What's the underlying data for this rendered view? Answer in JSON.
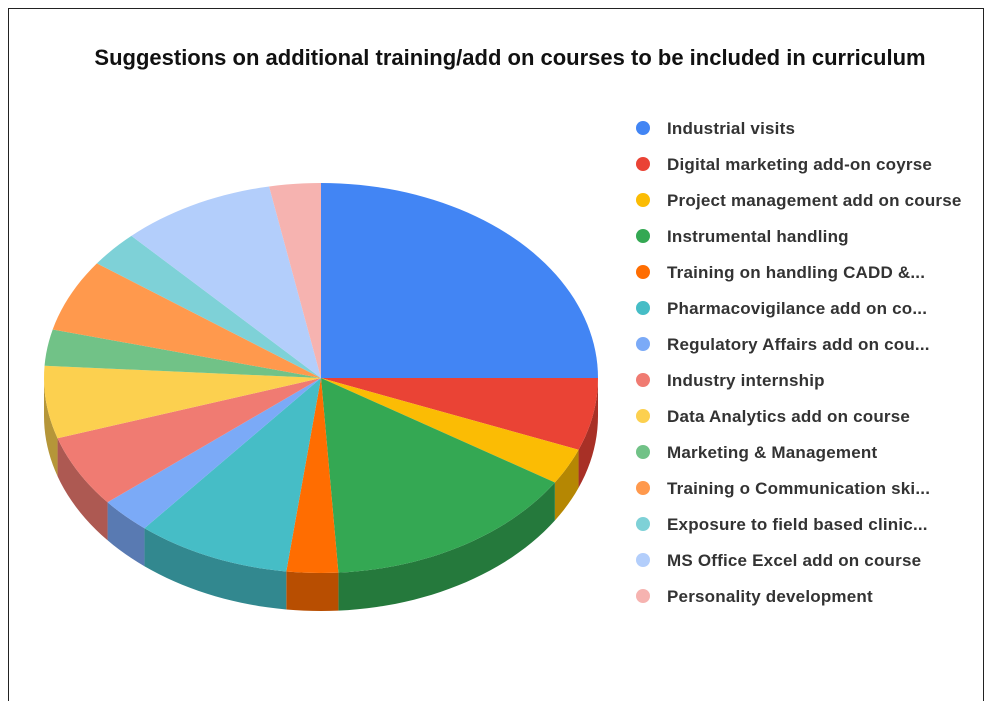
{
  "chart_data": {
    "type": "pie",
    "title": "Suggestions on additional training/add on courses to be included in curriculum",
    "categories": [
      "Industrial visits",
      "Digital marketing add-on coyrse",
      "Project management add on course",
      "Instrumental handling",
      "Training on handling CADD &...",
      "Pharmacovigilance add on co...",
      "Regulatory Affairs add on cou...",
      "Industry internship",
      "Data Analytics add on course",
      "Marketing & Management",
      "Training o Communication ski...",
      "Exposure to field based clinic...",
      "MS Office Excel add on course",
      "Personality development"
    ],
    "values": [
      25,
      6,
      3,
      15,
      3,
      9,
      3,
      6,
      6,
      3,
      6,
      3,
      9,
      3
    ],
    "colors": [
      "#4285f4",
      "#ea4335",
      "#fbbc04",
      "#34a853",
      "#ff6d01",
      "#46bdc6",
      "#7baaf7",
      "#f07b72",
      "#fcd04f",
      "#71c287",
      "#ff994d",
      "#7ed1d7",
      "#b3cefb",
      "#f6b3b0"
    ],
    "legend": "right"
  }
}
